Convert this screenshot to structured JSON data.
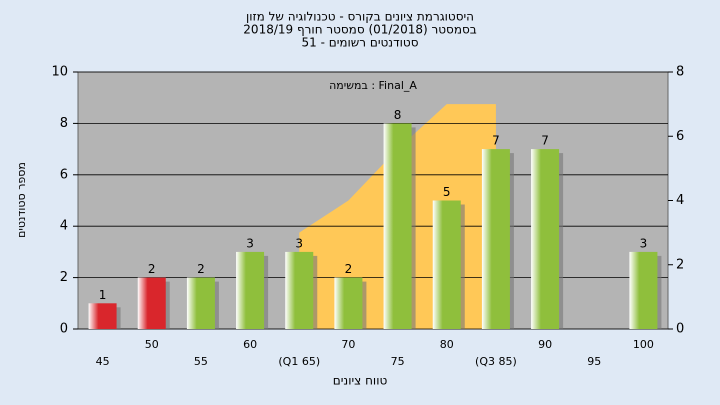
{
  "chart_data": {
    "type": "bar",
    "title": [
      "היסטוגרמת ציונים בקורס - טכנולוגיה של מזון",
      "בסמסטר  (01/2018)  סמסטר חורף 2018/19",
      "סטודנטים רשומים - 51"
    ],
    "annotation": "במשימה : Final_A",
    "y_label": "מספר סטודנטים",
    "x_label": "טווח ציונים",
    "categories": [
      "45",
      "50",
      "55",
      "60",
      "(Q1 65)",
      "70",
      "75",
      "80",
      "(Q3 85)",
      "90",
      "95",
      "100"
    ],
    "values": [
      1,
      2,
      2,
      3,
      3,
      2,
      8,
      5,
      7,
      7,
      null,
      3
    ],
    "colors": [
      "#d9262c",
      "#d9262c",
      "#8fbf3c",
      "#8fbf3c",
      "#8fbf3c",
      "#8fbf3c",
      "#8fbf3c",
      "#8fbf3c",
      "#8fbf3c",
      "#8fbf3c",
      "#8fbf3c",
      "#8fbf3c"
    ],
    "area": {
      "axis": "y2",
      "color": "#ffc857",
      "values": [
        null,
        null,
        null,
        null,
        3,
        4,
        5.6,
        7,
        7,
        null,
        null,
        null
      ]
    },
    "ylim": [
      0,
      10
    ],
    "yticks": [
      0,
      2,
      4,
      6,
      8,
      10
    ],
    "y2lim": [
      0,
      8
    ],
    "y2ticks": [
      0,
      2,
      4,
      6,
      8
    ],
    "grid": true
  }
}
